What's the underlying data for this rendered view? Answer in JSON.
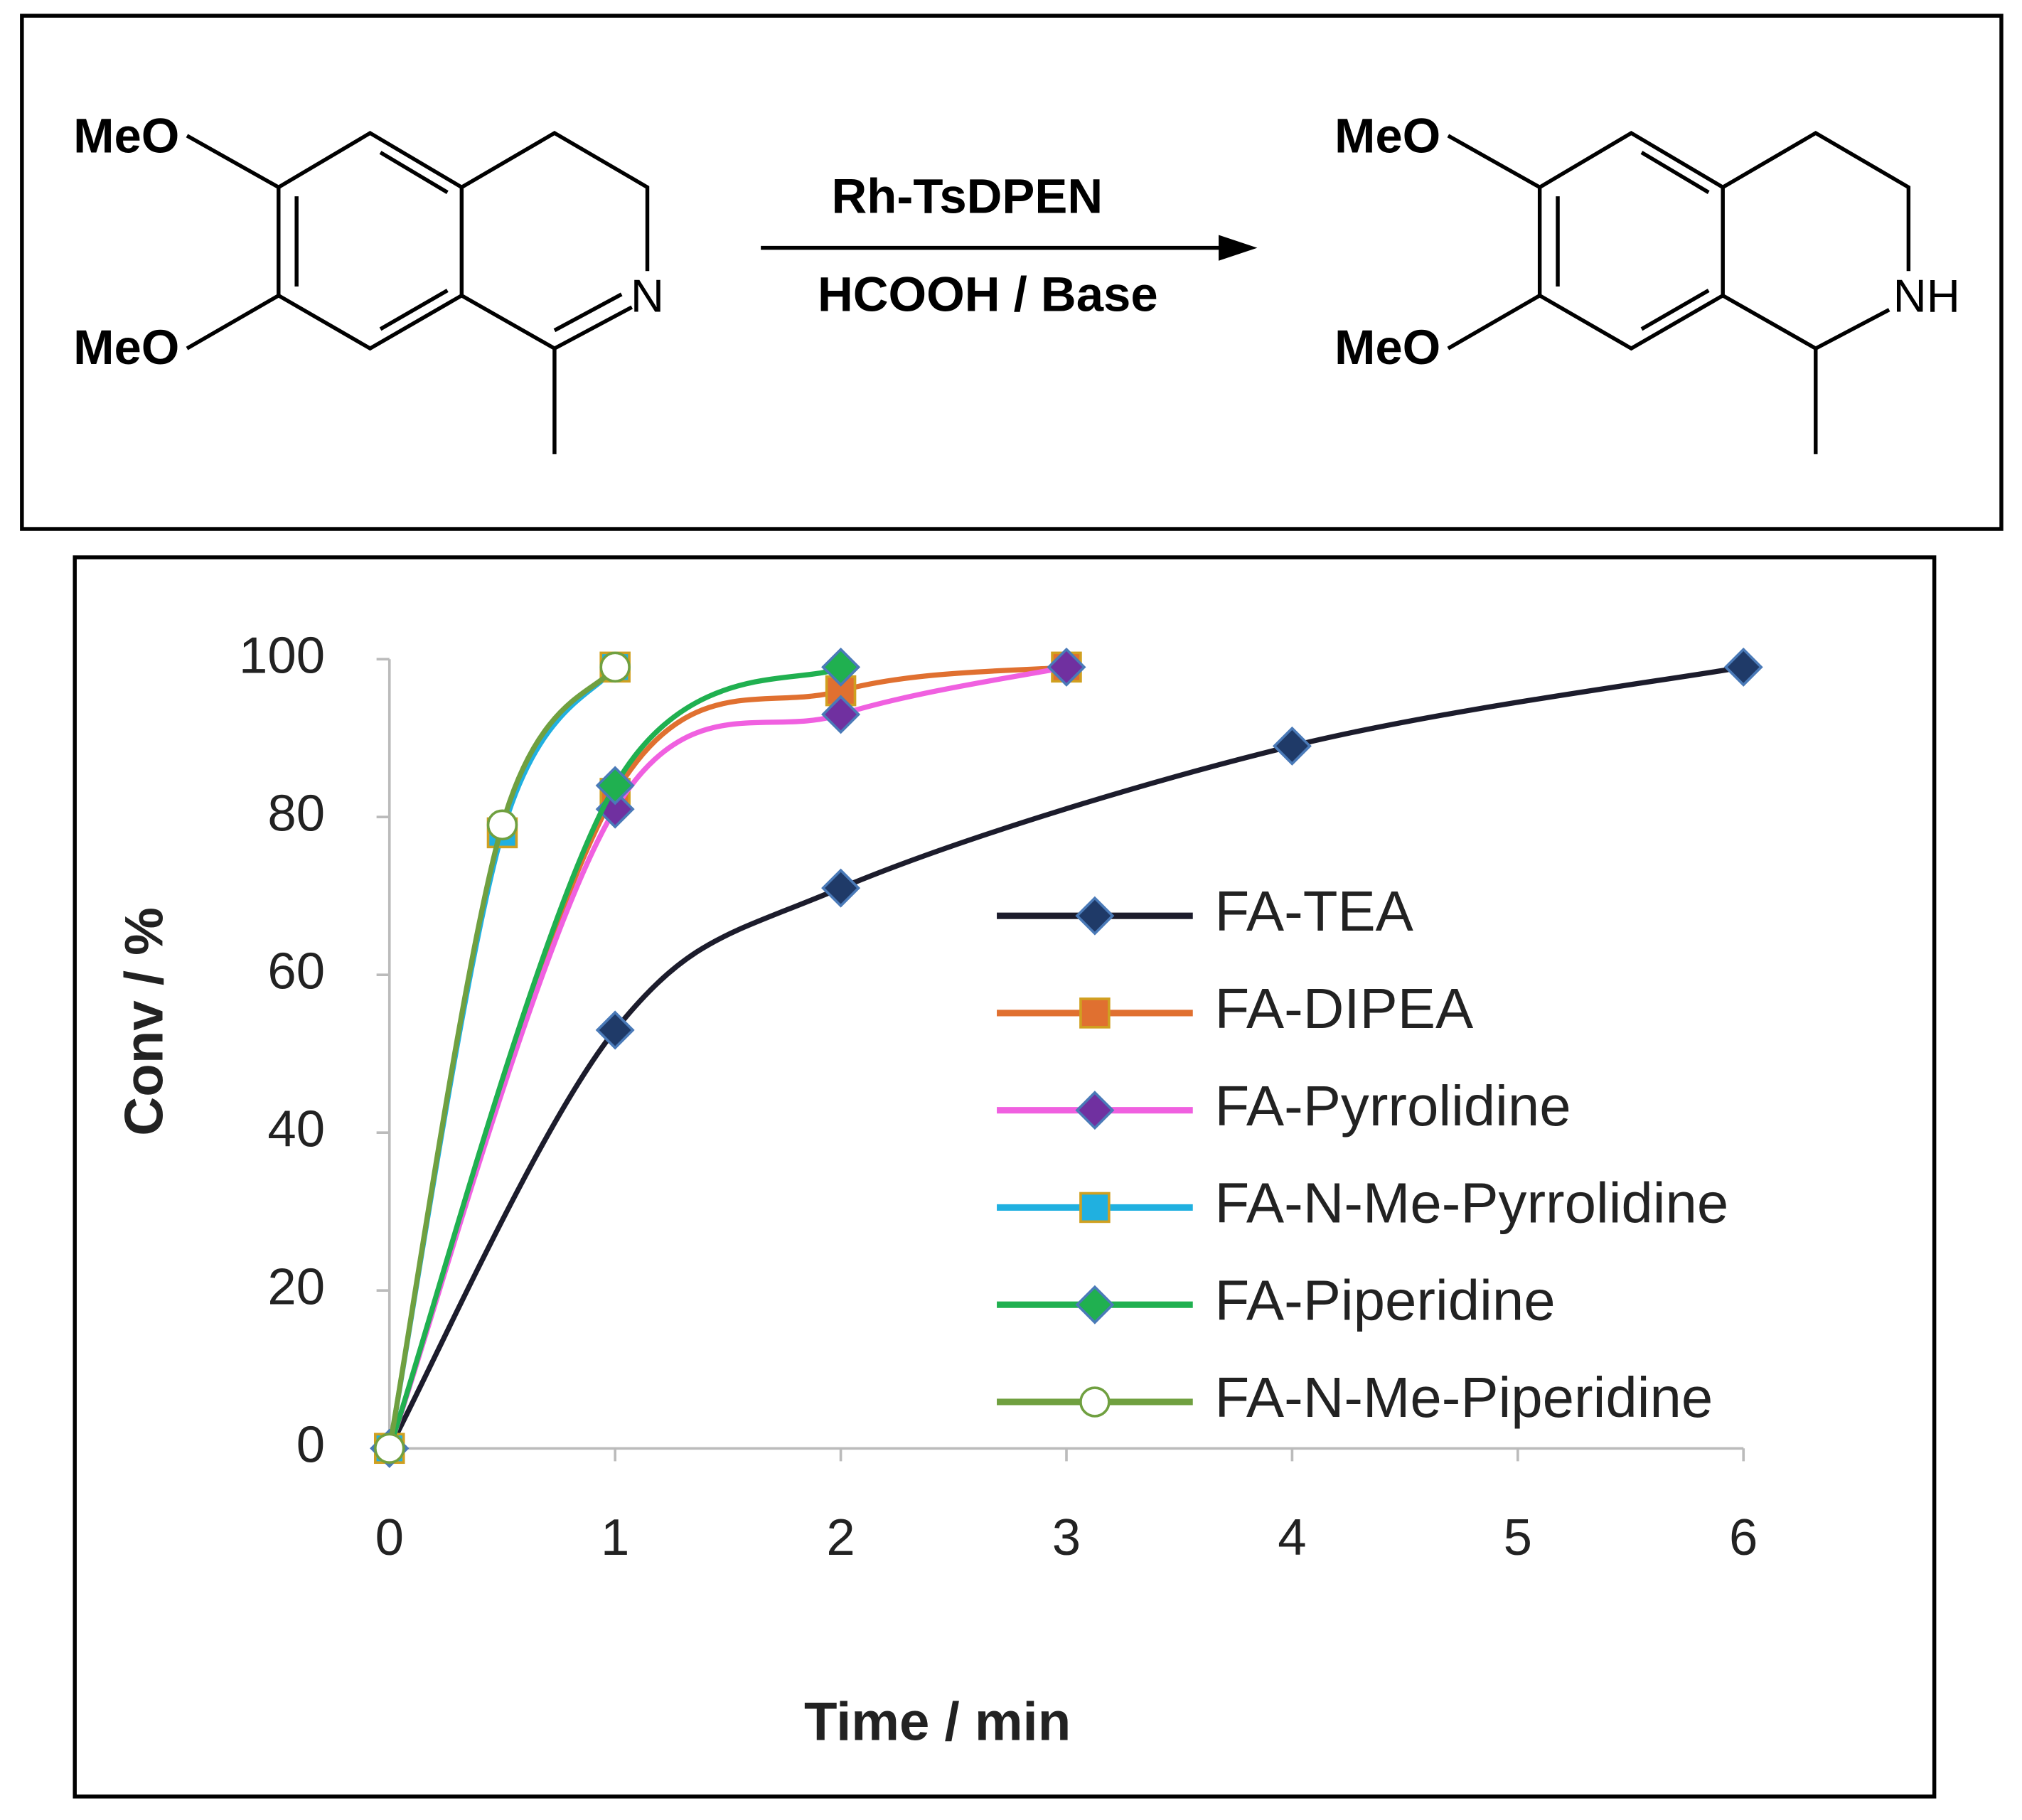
{
  "scheme": {
    "reactant": {
      "substituent_top": "MeO",
      "substituent_bottom": "MeO",
      "atom": "N"
    },
    "reagent_top": "Rh-TsDPEN",
    "reagent_bottom": "HCOOH / Base",
    "product": {
      "substituent_top": "MeO",
      "substituent_bottom": "MeO",
      "atom": "NH"
    }
  },
  "chart_data": {
    "type": "line",
    "x_label": "Time / min",
    "y_label": "Conv  / %",
    "xlim": [
      0,
      6
    ],
    "xticks": [
      0,
      1,
      2,
      3,
      4,
      5,
      6
    ],
    "ylim": [
      0,
      100
    ],
    "yticks": [
      0,
      20,
      40,
      60,
      80,
      100
    ],
    "grid": false,
    "smooth": true,
    "legend": "right",
    "series": [
      {
        "name": "FA-TEA",
        "color": "#1c1c2c",
        "marker": "diamond",
        "marker_color": "#1f3a68",
        "x": [
          0,
          1,
          2,
          4,
          6
        ],
        "values": [
          0,
          53,
          71,
          89,
          99
        ]
      },
      {
        "name": "FA-DIPEA",
        "color": "#e07030",
        "marker": "square",
        "marker_color": "#e07030",
        "x": [
          0,
          1,
          2,
          3
        ],
        "values": [
          0,
          83,
          96,
          99
        ]
      },
      {
        "name": "FA-Pyrrolidine",
        "color": "#f060e0",
        "marker": "diamond",
        "marker_color": "#7030a0",
        "x": [
          0,
          1,
          2,
          3
        ],
        "values": [
          0,
          81,
          93,
          99
        ]
      },
      {
        "name": "FA-N-Me-Pyrrolidine",
        "color": "#20b0e0",
        "marker": "square",
        "marker_color": "#20b0e0",
        "x": [
          0,
          0.5,
          1
        ],
        "values": [
          0,
          78,
          99
        ]
      },
      {
        "name": "FA-Piperidine",
        "color": "#20b050",
        "marker": "diamond",
        "marker_color": "#20b050",
        "x": [
          0,
          1,
          2
        ],
        "values": [
          0,
          84,
          99
        ]
      },
      {
        "name": "FA-N-Me-Piperidine",
        "color": "#70a040",
        "marker": "circle",
        "marker_color": "#70a040",
        "x": [
          0,
          0.5,
          1
        ],
        "values": [
          0,
          79,
          99
        ]
      }
    ]
  }
}
